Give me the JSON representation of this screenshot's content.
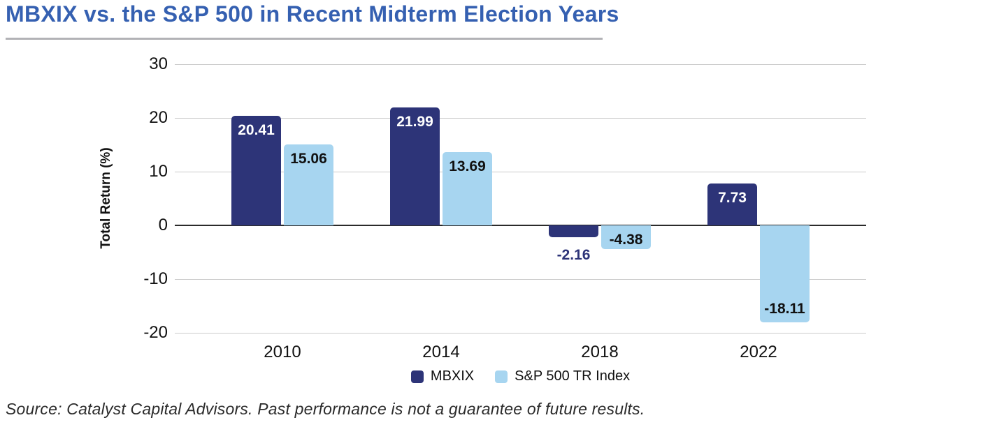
{
  "header": {
    "title": "MBXIX vs. the S&P 500 in Recent Midterm Election Years"
  },
  "source_note": "Source: Catalyst Capital Advisors. Past performance is not a guarantee of future results.",
  "colors": {
    "title_blue": "#3560B1",
    "navy": "#2D3478",
    "light_blue": "#A7D5F0",
    "gridline": "#CBCBCB",
    "zero_line": "#2B2B2B",
    "underline_gray": "#B2B2B6",
    "label_on_navy": "#FFFFFF",
    "label_dark": "#111111"
  },
  "chart_data": {
    "type": "bar",
    "title": "MBXIX vs. the S&P 500 in Recent Midterm Election Years",
    "categories": [
      "2010",
      "2014",
      "2018",
      "2022"
    ],
    "series": [
      {
        "name": "MBXIX",
        "color_key": "navy",
        "values": [
          20.41,
          21.99,
          -2.16,
          7.73
        ],
        "labels": [
          "20.41",
          "21.99",
          "-2.16",
          "7.73"
        ],
        "label_styles": [
          "inside-top-white",
          "inside-top-white",
          "below-navy",
          "inside-top-white"
        ]
      },
      {
        "name": "S&P 500 TR Index",
        "color_key": "light_blue",
        "values": [
          15.06,
          13.69,
          -4.38,
          -18.11
        ],
        "labels": [
          "15.06",
          "13.69",
          "-4.38",
          "-18.11"
        ],
        "label_styles": [
          "inside-top-dark",
          "inside-top-dark",
          "inside-top-dark",
          "inside-bottom-dark"
        ]
      }
    ],
    "xlabel": "",
    "ylabel": "Total Return (%)",
    "ylim": [
      -20,
      30
    ],
    "yticks": [
      30,
      20,
      10,
      0,
      -10,
      -20
    ],
    "grid": true,
    "legend_position": "bottom"
  }
}
